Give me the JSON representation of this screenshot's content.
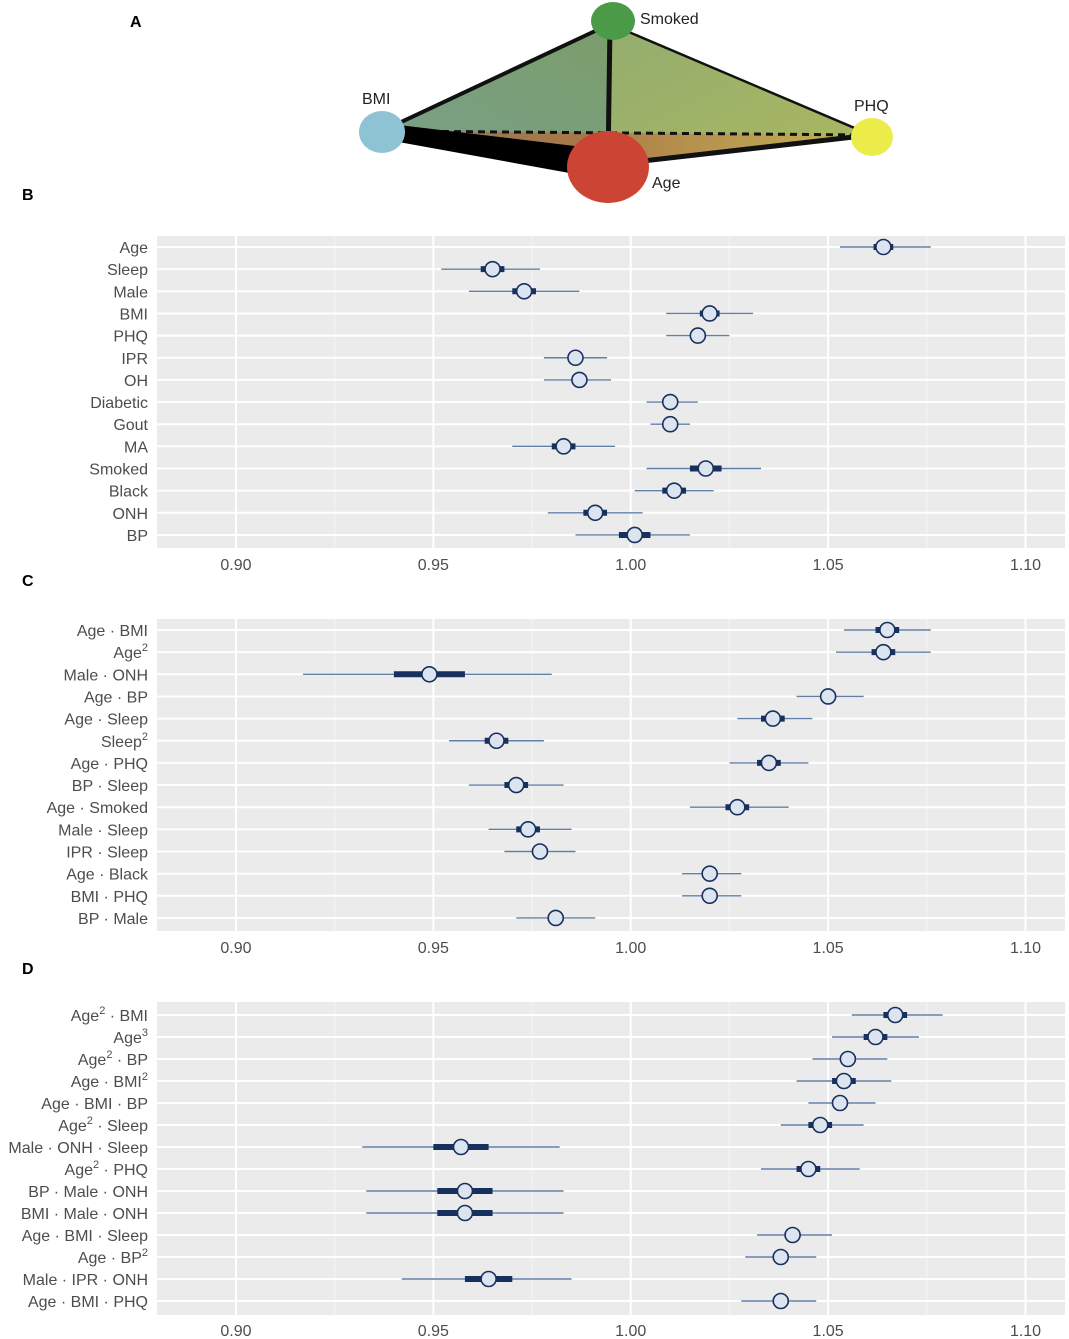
{
  "network": {
    "panel_letter": "A",
    "nodes": [
      {
        "id": "smoked",
        "label": "Smoked",
        "color": "#4a9a48"
      },
      {
        "id": "bmi",
        "label": "BMI",
        "color": "#8dc3d2"
      },
      {
        "id": "phq",
        "label": "PHQ",
        "color": "#ecec4a"
      },
      {
        "id": "age",
        "label": "Age",
        "color": "#cc4433"
      }
    ],
    "face_colors": {
      "left": "#7d9e72",
      "right": "#9aae6a",
      "bottom": "#a88a55"
    }
  },
  "chart_data": [
    {
      "panel": "B",
      "type": "forest",
      "xlim": [
        0.88,
        1.11
      ],
      "xticks": [
        0.9,
        0.95,
        1.0,
        1.05,
        1.1
      ],
      "xtick_labels": [
        "0.90",
        "0.95",
        "1.00",
        "1.05",
        "1.10"
      ],
      "rows": [
        {
          "label": [
            [
              "Age"
            ]
          ],
          "est": 1.064,
          "lo66": 1.0615,
          "hi66": 1.0665,
          "lo95": 1.053,
          "hi95": 1.076
        },
        {
          "label": [
            [
              "Sleep"
            ]
          ],
          "est": 0.965,
          "lo66": 0.962,
          "hi66": 0.968,
          "lo95": 0.952,
          "hi95": 0.977
        },
        {
          "label": [
            [
              "Male"
            ]
          ],
          "est": 0.973,
          "lo66": 0.97,
          "hi66": 0.976,
          "lo95": 0.959,
          "hi95": 0.987
        },
        {
          "label": [
            [
              "BMI"
            ]
          ],
          "est": 1.02,
          "lo66": 1.0175,
          "hi66": 1.0225,
          "lo95": 1.009,
          "hi95": 1.031
        },
        {
          "label": [
            [
              "PHQ"
            ]
          ],
          "est": 1.017,
          "lo66": 1.016,
          "hi66": 1.018,
          "lo95": 1.009,
          "hi95": 1.025
        },
        {
          "label": [
            [
              "IPR"
            ]
          ],
          "est": 0.986,
          "lo66": 0.985,
          "hi66": 0.987,
          "lo95": 0.978,
          "hi95": 0.994
        },
        {
          "label": [
            [
              "OH"
            ]
          ],
          "est": 0.987,
          "lo66": 0.986,
          "hi66": 0.988,
          "lo95": 0.978,
          "hi95": 0.995
        },
        {
          "label": [
            [
              "Diabetic"
            ]
          ],
          "est": 1.01,
          "lo66": 1.009,
          "hi66": 1.011,
          "lo95": 1.004,
          "hi95": 1.017
        },
        {
          "label": [
            [
              "Gout"
            ]
          ],
          "est": 1.01,
          "lo66": 1.009,
          "hi66": 1.011,
          "lo95": 1.005,
          "hi95": 1.015
        },
        {
          "label": [
            [
              "MA"
            ]
          ],
          "est": 0.983,
          "lo66": 0.98,
          "hi66": 0.986,
          "lo95": 0.97,
          "hi95": 0.996
        },
        {
          "label": [
            [
              "Smoked"
            ]
          ],
          "est": 1.019,
          "lo66": 1.015,
          "hi66": 1.023,
          "lo95": 1.004,
          "hi95": 1.033
        },
        {
          "label": [
            [
              "Black"
            ]
          ],
          "est": 1.011,
          "lo66": 1.008,
          "hi66": 1.014,
          "lo95": 1.001,
          "hi95": 1.021
        },
        {
          "label": [
            [
              "ONH"
            ]
          ],
          "est": 0.991,
          "lo66": 0.988,
          "hi66": 0.994,
          "lo95": 0.979,
          "hi95": 1.003
        },
        {
          "label": [
            [
              "BP"
            ]
          ],
          "est": 1.001,
          "lo66": 0.997,
          "hi66": 1.005,
          "lo95": 0.986,
          "hi95": 1.015
        }
      ]
    },
    {
      "panel": "C",
      "type": "forest",
      "xlim": [
        0.88,
        1.11
      ],
      "xticks": [
        0.9,
        0.95,
        1.0,
        1.05,
        1.1
      ],
      "xtick_labels": [
        "0.90",
        "0.95",
        "1.00",
        "1.05",
        "1.10"
      ],
      "rows": [
        {
          "label": [
            [
              "Age · BMI"
            ]
          ],
          "est": 1.065,
          "lo66": 1.062,
          "hi66": 1.068,
          "lo95": 1.054,
          "hi95": 1.076
        },
        {
          "label": [
            [
              "Age"
            ],
            [
              "2",
              "sup"
            ]
          ],
          "est": 1.064,
          "lo66": 1.061,
          "hi66": 1.067,
          "lo95": 1.052,
          "hi95": 1.076
        },
        {
          "label": [
            [
              "Male · ONH"
            ]
          ],
          "est": 0.949,
          "lo66": 0.94,
          "hi66": 0.958,
          "lo95": 0.917,
          "hi95": 0.98
        },
        {
          "label": [
            [
              "Age · BP"
            ]
          ],
          "est": 1.05,
          "lo66": 1.049,
          "hi66": 1.051,
          "lo95": 1.042,
          "hi95": 1.059
        },
        {
          "label": [
            [
              "Age · Sleep"
            ]
          ],
          "est": 1.036,
          "lo66": 1.033,
          "hi66": 1.039,
          "lo95": 1.027,
          "hi95": 1.046
        },
        {
          "label": [
            [
              "Sleep"
            ],
            [
              "2",
              "sup"
            ]
          ],
          "est": 0.966,
          "lo66": 0.963,
          "hi66": 0.969,
          "lo95": 0.954,
          "hi95": 0.978
        },
        {
          "label": [
            [
              "Age · PHQ"
            ]
          ],
          "est": 1.035,
          "lo66": 1.032,
          "hi66": 1.038,
          "lo95": 1.025,
          "hi95": 1.045
        },
        {
          "label": [
            [
              "BP · Sleep"
            ]
          ],
          "est": 0.971,
          "lo66": 0.968,
          "hi66": 0.974,
          "lo95": 0.959,
          "hi95": 0.983
        },
        {
          "label": [
            [
              "Age · Smoked"
            ]
          ],
          "est": 1.027,
          "lo66": 1.024,
          "hi66": 1.03,
          "lo95": 1.015,
          "hi95": 1.04
        },
        {
          "label": [
            [
              "Male · Sleep"
            ]
          ],
          "est": 0.974,
          "lo66": 0.971,
          "hi66": 0.977,
          "lo95": 0.964,
          "hi95": 0.985
        },
        {
          "label": [
            [
              "IPR · Sleep"
            ]
          ],
          "est": 0.977,
          "lo66": 0.975,
          "hi66": 0.979,
          "lo95": 0.968,
          "hi95": 0.986
        },
        {
          "label": [
            [
              "Age · Black"
            ]
          ],
          "est": 1.02,
          "lo66": 1.019,
          "hi66": 1.021,
          "lo95": 1.013,
          "hi95": 1.028
        },
        {
          "label": [
            [
              "BMI · PHQ"
            ]
          ],
          "est": 1.02,
          "lo66": 1.019,
          "hi66": 1.021,
          "lo95": 1.013,
          "hi95": 1.028
        },
        {
          "label": [
            [
              "BP · Male"
            ]
          ],
          "est": 0.981,
          "lo66": 0.979,
          "hi66": 0.983,
          "lo95": 0.971,
          "hi95": 0.991
        }
      ]
    },
    {
      "panel": "D",
      "type": "forest",
      "xlim": [
        0.88,
        1.11
      ],
      "xticks": [
        0.9,
        0.95,
        1.0,
        1.05,
        1.1
      ],
      "xtick_labels": [
        "0.90",
        "0.95",
        "1.00",
        "1.05",
        "1.10"
      ],
      "rows": [
        {
          "label": [
            [
              "Age"
            ],
            [
              "2",
              "sup"
            ],
            [
              " · BMI"
            ]
          ],
          "est": 1.067,
          "lo66": 1.064,
          "hi66": 1.07,
          "lo95": 1.056,
          "hi95": 1.079
        },
        {
          "label": [
            [
              "Age"
            ],
            [
              "3",
              "sup"
            ]
          ],
          "est": 1.062,
          "lo66": 1.059,
          "hi66": 1.065,
          "lo95": 1.051,
          "hi95": 1.073
        },
        {
          "label": [
            [
              "Age"
            ],
            [
              "2",
              "sup"
            ],
            [
              " · BP"
            ]
          ],
          "est": 1.055,
          "lo66": 1.053,
          "hi66": 1.057,
          "lo95": 1.046,
          "hi95": 1.065
        },
        {
          "label": [
            [
              "Age · BMI"
            ],
            [
              "2",
              "sup"
            ]
          ],
          "est": 1.054,
          "lo66": 1.051,
          "hi66": 1.057,
          "lo95": 1.042,
          "hi95": 1.066
        },
        {
          "label": [
            [
              "Age · BMI · BP"
            ]
          ],
          "est": 1.053,
          "lo66": 1.052,
          "hi66": 1.054,
          "lo95": 1.045,
          "hi95": 1.062
        },
        {
          "label": [
            [
              "Age"
            ],
            [
              "2",
              "sup"
            ],
            [
              " · Sleep"
            ]
          ],
          "est": 1.048,
          "lo66": 1.045,
          "hi66": 1.051,
          "lo95": 1.038,
          "hi95": 1.059
        },
        {
          "label": [
            [
              "Male · ONH · Sleep"
            ]
          ],
          "est": 0.957,
          "lo66": 0.95,
          "hi66": 0.964,
          "lo95": 0.932,
          "hi95": 0.982
        },
        {
          "label": [
            [
              "Age"
            ],
            [
              "2",
              "sup"
            ],
            [
              " · PHQ"
            ]
          ],
          "est": 1.045,
          "lo66": 1.042,
          "hi66": 1.048,
          "lo95": 1.033,
          "hi95": 1.058
        },
        {
          "label": [
            [
              "BP · Male · ONH"
            ]
          ],
          "est": 0.958,
          "lo66": 0.951,
          "hi66": 0.965,
          "lo95": 0.933,
          "hi95": 0.983
        },
        {
          "label": [
            [
              "BMI · Male · ONH"
            ]
          ],
          "est": 0.958,
          "lo66": 0.951,
          "hi66": 0.965,
          "lo95": 0.933,
          "hi95": 0.983
        },
        {
          "label": [
            [
              "Age · BMI · Sleep"
            ]
          ],
          "est": 1.041,
          "lo66": 1.039,
          "hi66": 1.043,
          "lo95": 1.032,
          "hi95": 1.051
        },
        {
          "label": [
            [
              "Age · BP"
            ],
            [
              "2",
              "sup"
            ]
          ],
          "est": 1.038,
          "lo66": 1.036,
          "hi66": 1.04,
          "lo95": 1.029,
          "hi95": 1.047
        },
        {
          "label": [
            [
              "Male · IPR · ONH"
            ]
          ],
          "est": 0.964,
          "lo66": 0.958,
          "hi66": 0.97,
          "lo95": 0.942,
          "hi95": 0.985
        },
        {
          "label": [
            [
              "Age · BMI · PHQ"
            ]
          ],
          "est": 1.038,
          "lo66": 1.036,
          "hi66": 1.04,
          "lo95": 1.028,
          "hi95": 1.047
        }
      ]
    }
  ]
}
